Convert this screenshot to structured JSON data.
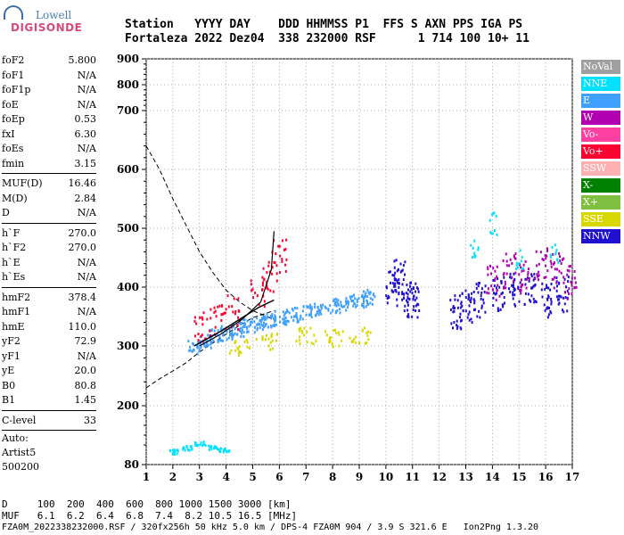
{
  "logo": {
    "top": "Lowell",
    "bottom": "DIGISONDE"
  },
  "header": {
    "labels": "Station   YYYY DAY    DDD HHMMSS P1  FFS S AXN PPS IGA PS",
    "values": "Fortaleza 2022 Dez04  338 232000 RSF      1 714 100 10+ 11"
  },
  "params": [
    [
      {
        "name": "foF2",
        "value": "5.800"
      },
      {
        "name": "foF1",
        "value": "N/A"
      },
      {
        "name": "foF1p",
        "value": "N/A"
      },
      {
        "name": "foE",
        "value": "N/A"
      },
      {
        "name": "foEp",
        "value": "0.53"
      },
      {
        "name": "fxI",
        "value": "6.30"
      },
      {
        "name": "foEs",
        "value": "N/A"
      },
      {
        "name": "fmin",
        "value": "3.15"
      }
    ],
    [
      {
        "name": "MUF(D)",
        "value": "16.46"
      },
      {
        "name": "M(D)",
        "value": "2.84"
      },
      {
        "name": "D",
        "value": "N/A"
      }
    ],
    [
      {
        "name": "h`F",
        "value": "270.0"
      },
      {
        "name": "h`F2",
        "value": "270.0"
      },
      {
        "name": "h`E",
        "value": "N/A"
      },
      {
        "name": "h`Es",
        "value": "N/A"
      }
    ],
    [
      {
        "name": "hmF2",
        "value": "378.4"
      },
      {
        "name": "hmF1",
        "value": "N/A"
      },
      {
        "name": "hmE",
        "value": "110.0"
      },
      {
        "name": "yF2",
        "value": "72.9"
      },
      {
        "name": "yF1",
        "value": "N/A"
      },
      {
        "name": "yE",
        "value": "20.0"
      },
      {
        "name": "B0",
        "value": "80.8"
      },
      {
        "name": "B1",
        "value": "1.45"
      }
    ],
    [
      {
        "name": "C-level",
        "value": "33"
      }
    ]
  ],
  "auto": {
    "line1": "Auto:",
    "line2": "Artist5",
    "line3": "500200"
  },
  "legend": [
    {
      "label": "NoVal",
      "color": "#a0a0a0"
    },
    {
      "label": "NNE",
      "color": "#00e0ff"
    },
    {
      "label": "E",
      "color": "#40a0ff"
    },
    {
      "label": "W",
      "color": "#b000b0"
    },
    {
      "label": "Vo-",
      "color": "#ff40a0"
    },
    {
      "label": "Vo+",
      "color": "#ff0030"
    },
    {
      "label": "SSW",
      "color": "#ffb0b0"
    },
    {
      "label": "X-",
      "color": "#008000"
    },
    {
      "label": "X+",
      "color": "#80c040"
    },
    {
      "label": "SSE",
      "color": "#d8d800"
    },
    {
      "label": "NNW",
      "color": "#2010d0"
    }
  ],
  "footer": {
    "d_row": "D     100  200  400  600  800 1000 1500 3000 [km]",
    "muf_row": "MUF   6.1  6.2  6.4  6.8  7.4  8.2 10.5 16.5 [MHz]",
    "file_row": "FZA0M_2022338232000.RSF / 320fx256h 50 kHz 5.0 km / DPS-4 FZA0M 904 / 3.9 S 321.6 E   Ion2Png 1.3.20"
  },
  "chart_data": {
    "type": "scatter",
    "title": "",
    "xlabel": "",
    "ylabel": "",
    "xlim": [
      1,
      17
    ],
    "ylim": [
      80,
      900
    ],
    "x_ticks": [
      1,
      2,
      3,
      4,
      5,
      6,
      7,
      8,
      9,
      10,
      11,
      12,
      13,
      14,
      15,
      16,
      17
    ],
    "y_ticks": [
      80,
      200,
      300,
      400,
      500,
      600,
      700,
      800,
      900
    ],
    "grid": "dotted",
    "legend_position": "right",
    "series": [
      {
        "name": "E",
        "points": [
          [
            2.8,
            300
          ],
          [
            3.2,
            310
          ],
          [
            3.6,
            318
          ],
          [
            4.0,
            325
          ],
          [
            4.4,
            330
          ],
          [
            4.8,
            336
          ],
          [
            5.2,
            340
          ],
          [
            5.6,
            346
          ],
          [
            6.0,
            350
          ],
          [
            6.5,
            355
          ],
          [
            7.0,
            360
          ],
          [
            7.5,
            365
          ],
          [
            8.0,
            370
          ],
          [
            8.5,
            375
          ],
          [
            9.0,
            380
          ],
          [
            9.3,
            385
          ]
        ]
      },
      {
        "name": "NNW",
        "points": [
          [
            10.2,
            400
          ],
          [
            10.5,
            420
          ],
          [
            10.8,
            390
          ],
          [
            11.0,
            380
          ],
          [
            12.6,
            360
          ],
          [
            13.0,
            370
          ],
          [
            13.5,
            380
          ],
          [
            14.2,
            390
          ],
          [
            14.8,
            400
          ],
          [
            15.4,
            395
          ],
          [
            16.0,
            380
          ],
          [
            16.6,
            390
          ]
        ]
      },
      {
        "name": "W",
        "points": [
          [
            14.0,
            410
          ],
          [
            14.6,
            430
          ],
          [
            15.2,
            420
          ],
          [
            15.8,
            440
          ],
          [
            16.4,
            430
          ],
          [
            16.9,
            410
          ]
        ]
      },
      {
        "name": "Vo+",
        "points": [
          [
            3.0,
            330
          ],
          [
            3.6,
            345
          ],
          [
            4.2,
            360
          ],
          [
            5.2,
            390
          ],
          [
            5.6,
            420
          ],
          [
            6.0,
            455
          ]
        ]
      },
      {
        "name": "SSE",
        "points": [
          [
            4.5,
            300
          ],
          [
            5.5,
            310
          ],
          [
            7.0,
            320
          ],
          [
            8.0,
            315
          ],
          [
            9.0,
            320
          ]
        ]
      },
      {
        "name": "NNE",
        "points": [
          [
            13.3,
            470
          ],
          [
            14.0,
            510
          ],
          [
            15.0,
            450
          ],
          [
            16.3,
            460
          ]
        ]
      }
    ],
    "es_trace": {
      "name": "NNE",
      "points": [
        [
          2.0,
          108
        ],
        [
          2.5,
          115
        ],
        [
          3.0,
          125
        ],
        [
          3.5,
          118
        ],
        [
          3.9,
          112
        ]
      ]
    },
    "profile_curve": {
      "points": [
        [
          2.8,
          300
        ],
        [
          3.2,
          310
        ],
        [
          3.8,
          325
        ],
        [
          4.5,
          345
        ],
        [
          5.2,
          365
        ],
        [
          5.8,
          378
        ]
      ]
    },
    "trace_curve": {
      "points": [
        [
          3.0,
          300
        ],
        [
          3.8,
          320
        ],
        [
          4.6,
          345
        ],
        [
          5.3,
          375
        ],
        [
          5.7,
          430
        ],
        [
          5.8,
          495
        ]
      ]
    },
    "muf_curve_upper": {
      "points": [
        [
          1.0,
          640
        ],
        [
          1.5,
          600
        ],
        [
          2.0,
          550
        ],
        [
          2.5,
          505
        ],
        [
          3.0,
          460
        ],
        [
          3.5,
          425
        ],
        [
          4.0,
          395
        ],
        [
          4.5,
          375
        ],
        [
          5.0,
          360
        ],
        [
          5.8,
          345
        ]
      ]
    },
    "muf_curve_lower": {
      "points": [
        [
          1.0,
          230
        ],
        [
          1.5,
          245
        ],
        [
          2.0,
          258
        ],
        [
          2.5,
          272
        ],
        [
          3.0,
          290
        ],
        [
          3.5,
          305
        ],
        [
          4.0,
          320
        ],
        [
          4.5,
          335
        ],
        [
          5.0,
          348
        ],
        [
          5.8,
          360
        ]
      ]
    }
  }
}
